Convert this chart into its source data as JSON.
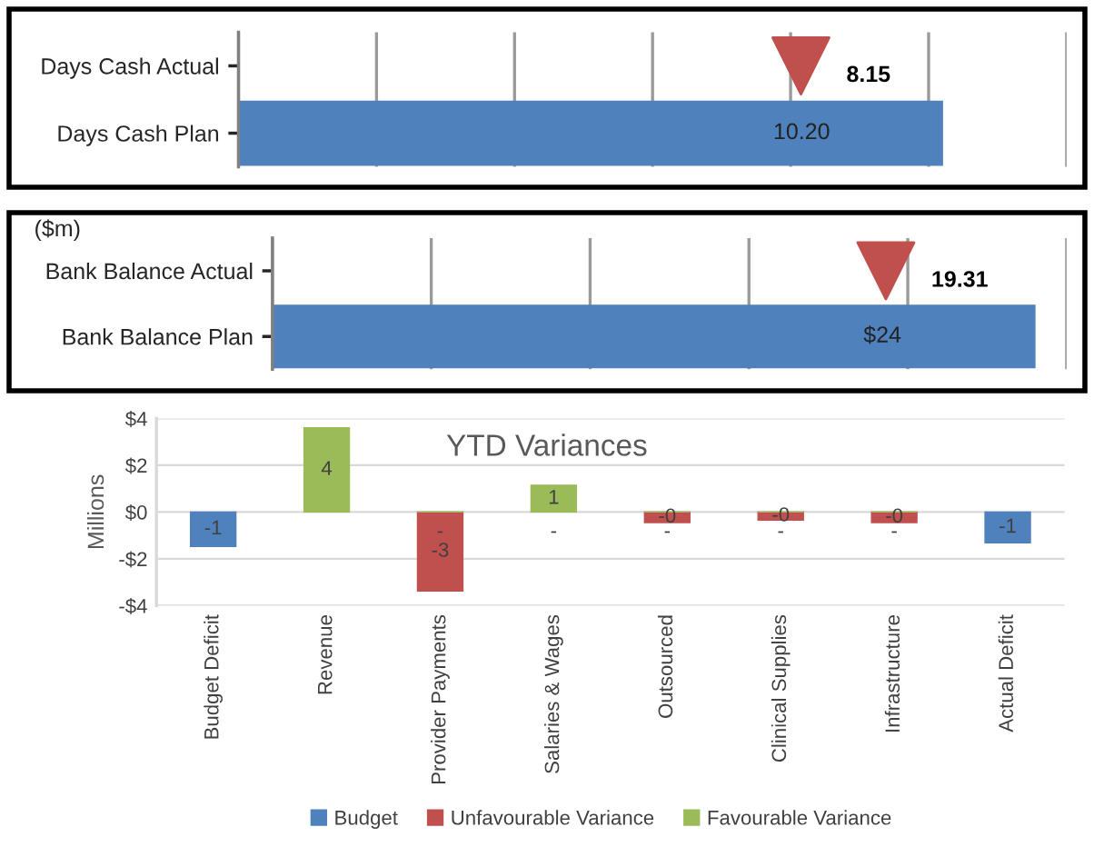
{
  "chart_data": [
    {
      "type": "bar",
      "orientation": "horizontal",
      "categories": [
        "Days Cash Actual",
        "Days Cash Plan"
      ],
      "series": [
        {
          "type": "bar",
          "color": "#4f81bd",
          "values": [
            null,
            10.2
          ],
          "value_labels": [
            null,
            "10.20"
          ]
        },
        {
          "type": "scatter",
          "marker": "triangle",
          "color": "#c0504d",
          "values": [
            8.15,
            null
          ],
          "value_labels": [
            "8.15",
            null
          ]
        }
      ],
      "xlim": [
        0,
        12
      ],
      "xticks": [
        {
          "value": 0,
          "label": null
        },
        {
          "value": 2,
          "label": null
        },
        {
          "value": 4,
          "label": null
        },
        {
          "value": 6,
          "label": null
        },
        {
          "value": 8,
          "label": null
        },
        {
          "value": 10,
          "label": null
        },
        {
          "value": 12,
          "label": null
        }
      ],
      "grid": "x",
      "tick_labels": "y"
    },
    {
      "type": "bar",
      "orientation": "horizontal",
      "categories": [
        "Bank Balance Actual",
        "Bank Balance Plan"
      ],
      "annotations": [
        "($m)"
      ],
      "series": [
        {
          "type": "bar",
          "color": "#4f81bd",
          "values": [
            null,
            24
          ],
          "value_labels": [
            null,
            "$24"
          ]
        },
        {
          "type": "scatter",
          "marker": "triangle",
          "color": "#c0504d",
          "values": [
            19.31,
            null
          ],
          "value_labels": [
            "19.31",
            null
          ]
        }
      ],
      "xlim": [
        0,
        25
      ],
      "xticks": [
        {
          "value": 0,
          "label": null
        },
        {
          "value": 5,
          "label": null
        },
        {
          "value": 10,
          "label": null
        },
        {
          "value": 15,
          "label": null
        },
        {
          "value": 20,
          "label": null
        },
        {
          "value": 25,
          "label": null
        }
      ],
      "grid": "x",
      "tick_labels": "y"
    },
    {
      "type": "bar",
      "title": "YTD Variances",
      "ylabel": "Millions",
      "stacked": true,
      "categories": [
        "Budget Deficit",
        "Revenue",
        "Provider Payments",
        "Salaries & Wages",
        "Outsourced",
        "Clinical Supplies",
        "Infrastructure",
        "Actual Deficit"
      ],
      "series": [
        {
          "name": "Budget",
          "color": "#4f81bd",
          "values": [
            -1.47,
            null,
            null,
            null,
            null,
            null,
            null,
            -1.32
          ],
          "value_labels": [
            "-1",
            null,
            null,
            null,
            null,
            null,
            null,
            "-1"
          ]
        },
        {
          "name": "Unfavourable Variance",
          "color": "#c0504d",
          "values": [
            null,
            null,
            -3.38,
            0,
            -0.45,
            -0.35,
            -0.45,
            null
          ],
          "value_labels": [
            null,
            null,
            "-3",
            "-",
            "-0",
            "-0",
            "-0",
            null
          ]
        },
        {
          "name": "Favourable Variance",
          "color": "#9bbb59",
          "values": [
            null,
            3.6,
            0,
            1.14,
            0,
            0,
            0,
            null
          ],
          "value_labels": [
            null,
            "4",
            "-",
            "1",
            "-",
            "-",
            "-",
            null
          ]
        }
      ],
      "ylim": [
        -4,
        4
      ],
      "yticks": [
        {
          "value": -4,
          "label": "-$4"
        },
        {
          "value": -2,
          "label": "-$2"
        },
        {
          "value": 0,
          "label": "$0"
        },
        {
          "value": 2,
          "label": "$2"
        },
        {
          "value": 4,
          "label": "$4"
        }
      ],
      "grid": "y",
      "legend": "bottom"
    }
  ]
}
